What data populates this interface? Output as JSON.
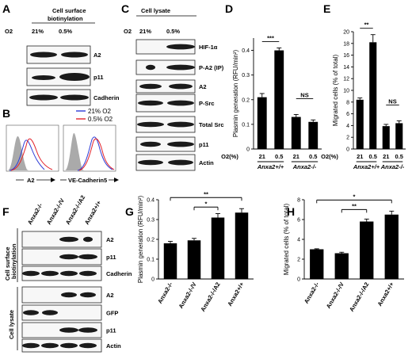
{
  "panels": {
    "A": {
      "label": "A",
      "header": "Cell surface biotinylation",
      "o2_label": "O2",
      "conditions": [
        "21%",
        "0.5%"
      ],
      "rows": [
        "A2",
        "p11",
        "Cadherin"
      ]
    },
    "B": {
      "label": "B",
      "legend": [
        "21% O2",
        "0.5% O2"
      ],
      "legend_colors": [
        "#2d3bd6",
        "#e2232b"
      ],
      "xlabels": [
        "A2",
        "VE-Cadherin"
      ],
      "xsuffix": "5"
    },
    "C": {
      "label": "C",
      "header": "Cell lysate",
      "o2_label": "O2",
      "conditions": [
        "21%",
        "0.5%"
      ],
      "rows": [
        "HIF-1α",
        "P-A2 (IP)",
        "A2",
        "P-Src",
        "Total Src",
        "p11",
        "Actin"
      ]
    },
    "F": {
      "label": "F",
      "lanes": [
        "Anxa2-/-",
        "Anxa2-/-/V",
        "Anxa2-/-/A2",
        "Anxa2+/+"
      ],
      "group1": "Cell surface biotinylation",
      "group2": "Cell lysate",
      "rows1": [
        "A2",
        "p11",
        "Cadherin"
      ],
      "rows2": [
        "A2",
        "GFP",
        "p11",
        "Actin"
      ]
    }
  },
  "chart_data": [
    {
      "panel": "D",
      "type": "bar",
      "ylabel": "Plasmin generation (RFU/min²)",
      "xlabel_prefix": "O2(%)",
      "categories": [
        "21",
        "0.5",
        "21",
        "0.5"
      ],
      "groups": [
        "Anxa2+/+",
        "Anxa2-/-"
      ],
      "values": [
        0.21,
        0.4,
        0.13,
        0.11
      ],
      "errors": [
        0.015,
        0.01,
        0.01,
        0.008
      ],
      "ylim": [
        0,
        0.45
      ],
      "yticks": [
        "0",
        "0.1",
        "0.2",
        "0.3",
        "0.4"
      ],
      "annotations": [
        "***",
        "NS"
      ]
    },
    {
      "panel": "E",
      "type": "bar",
      "ylabel": "Migrated cells (% of total)",
      "xlabel_prefix": "O2(%)",
      "categories": [
        "21",
        "0.5",
        "21",
        "0.5"
      ],
      "groups": [
        "Anxa2+/+",
        "Anxa2-/-"
      ],
      "values": [
        8.4,
        18.2,
        3.9,
        4.4
      ],
      "errors": [
        0.3,
        1.3,
        0.3,
        0.4
      ],
      "ylim": [
        0,
        20
      ],
      "yticks": [
        "0",
        "2",
        "4",
        "6",
        "8",
        "10",
        "12",
        "14",
        "16",
        "18",
        "20"
      ],
      "annotations": [
        "**",
        "NS"
      ]
    },
    {
      "panel": "G",
      "type": "bar",
      "ylabel": "Plasmin generation (RFU/min²)",
      "categories": [
        "Anxa2-/-",
        "Anxa2-/-/V",
        "Anxa2-/-/A2",
        "Anxa2+/+"
      ],
      "values": [
        0.18,
        0.195,
        0.31,
        0.335
      ],
      "errors": [
        0.01,
        0.01,
        0.02,
        0.02
      ],
      "ylim": [
        0,
        0.4
      ],
      "yticks": [
        "0",
        "0.1",
        "0.2",
        "0.3",
        "0.4"
      ],
      "annotations": [
        "**",
        "*"
      ]
    },
    {
      "panel": "H",
      "type": "bar",
      "ylabel": "Migrated cells (% of total)",
      "categories": [
        "Anxa2-/-",
        "Anxa2-/-/V",
        "Anxa2-/-/A2",
        "Anxa2+/+"
      ],
      "values": [
        3.0,
        2.6,
        5.8,
        6.5
      ],
      "errors": [
        0.05,
        0.1,
        0.25,
        0.35
      ],
      "ylim": [
        0,
        8
      ],
      "yticks": [
        "0",
        "2",
        "4",
        "6",
        "8"
      ],
      "annotations": [
        "*",
        "**"
      ]
    }
  ]
}
